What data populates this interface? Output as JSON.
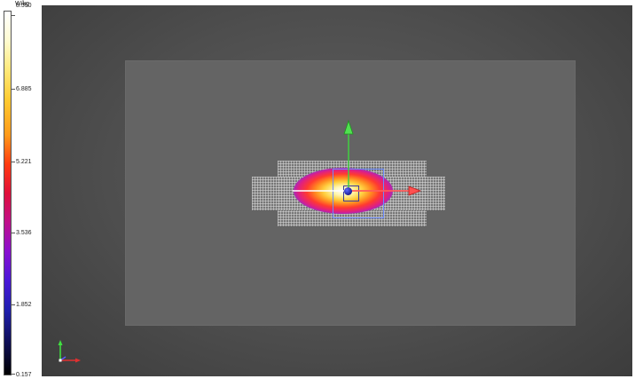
{
  "colorbar": {
    "unit": "W/kg",
    "ticks": [
      {
        "label": "8.550",
        "fraction": 1.0
      },
      {
        "label": "6.885",
        "fraction": 0.8
      },
      {
        "label": "5.221",
        "fraction": 0.6
      },
      {
        "label": "3.536",
        "fraction": 0.4
      },
      {
        "label": "1.852",
        "fraction": 0.2
      },
      {
        "label": "0.157",
        "fraction": 0.0
      }
    ]
  },
  "viewport": {
    "background": "#4e4e4e",
    "axis_colors": {
      "x": "#e03030",
      "y": "#40d040",
      "z": "#ffffff"
    }
  }
}
